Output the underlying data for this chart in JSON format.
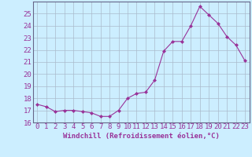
{
  "x": [
    0,
    1,
    2,
    3,
    4,
    5,
    6,
    7,
    8,
    9,
    10,
    11,
    12,
    13,
    14,
    15,
    16,
    17,
    18,
    19,
    20,
    21,
    22,
    23
  ],
  "y": [
    17.5,
    17.3,
    16.9,
    17.0,
    17.0,
    16.9,
    16.8,
    16.5,
    16.5,
    17.0,
    18.0,
    18.4,
    18.5,
    19.5,
    21.9,
    22.7,
    22.7,
    24.0,
    25.6,
    24.9,
    24.2,
    23.1,
    22.4,
    21.1
  ],
  "xlim": [
    -0.5,
    23.5
  ],
  "ylim": [
    16,
    26
  ],
  "yticks": [
    16,
    17,
    18,
    19,
    20,
    21,
    22,
    23,
    24,
    25
  ],
  "xticks": [
    0,
    1,
    2,
    3,
    4,
    5,
    6,
    7,
    8,
    9,
    10,
    11,
    12,
    13,
    14,
    15,
    16,
    17,
    18,
    19,
    20,
    21,
    22,
    23
  ],
  "xlabel": "Windchill (Refroidissement éolien,°C)",
  "line_color": "#993399",
  "marker": "D",
  "marker_size": 2,
  "bg_color": "#cceeff",
  "grid_color": "#aabbcc",
  "xlabel_fontsize": 6.5,
  "tick_fontsize": 6.5
}
